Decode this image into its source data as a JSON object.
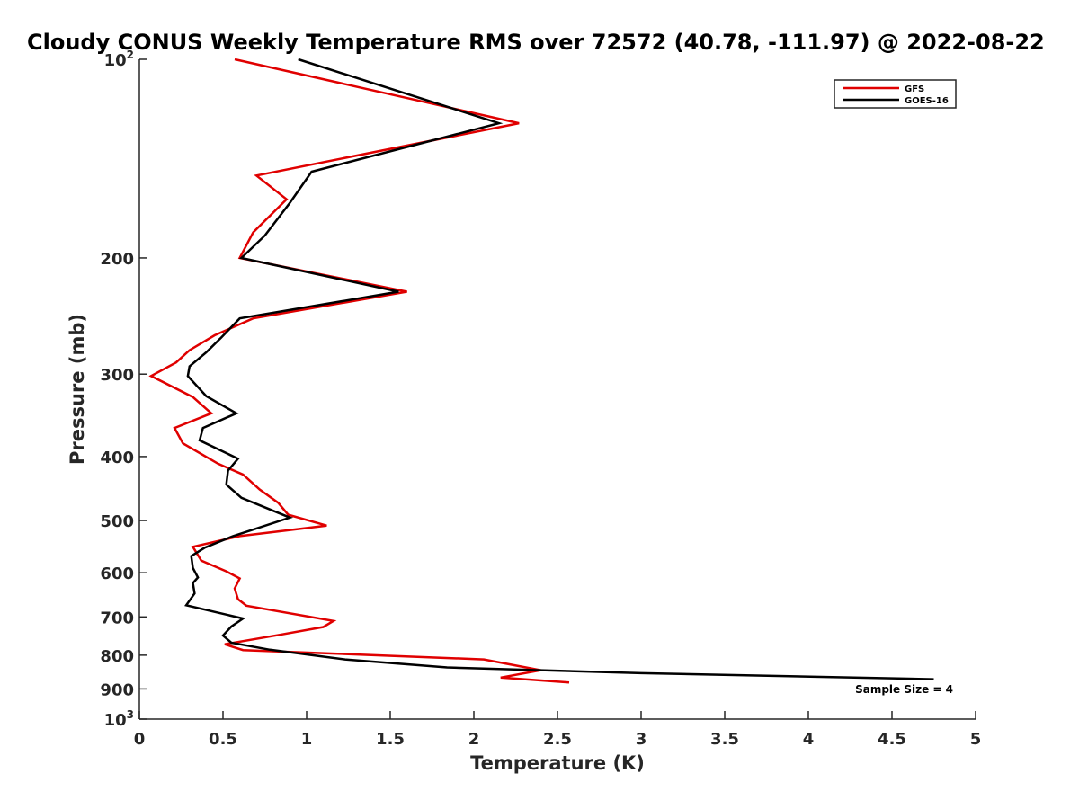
{
  "chart_data": {
    "type": "line",
    "title": "Cloudy CONUS Weekly Temperature RMS over 72572 (40.78, -111.97) @ 2022-08-22",
    "xlabel": "Temperature (K)",
    "ylabel": "Pressure (mb)",
    "xlim": [
      0,
      5
    ],
    "ylim": [
      100,
      1000
    ],
    "y_scale": "log",
    "y_reversed": true,
    "grid": false,
    "legend_position": "top-right",
    "x_ticks": [
      {
        "value": 0,
        "label": "0"
      },
      {
        "value": 0.5,
        "label": "0.5"
      },
      {
        "value": 1,
        "label": "1"
      },
      {
        "value": 1.5,
        "label": "1.5"
      },
      {
        "value": 2,
        "label": "2"
      },
      {
        "value": 2.5,
        "label": "2.5"
      },
      {
        "value": 3,
        "label": "3"
      },
      {
        "value": 3.5,
        "label": "3.5"
      },
      {
        "value": 4,
        "label": "4"
      },
      {
        "value": 4.5,
        "label": "4.5"
      },
      {
        "value": 5,
        "label": "5"
      }
    ],
    "y_ticks": [
      {
        "value": 100,
        "label": "10",
        "sup": "2"
      },
      {
        "value": 200,
        "label": "200",
        "sup": ""
      },
      {
        "value": 300,
        "label": "300",
        "sup": ""
      },
      {
        "value": 400,
        "label": "400",
        "sup": ""
      },
      {
        "value": 500,
        "label": "500",
        "sup": ""
      },
      {
        "value": 600,
        "label": "600",
        "sup": ""
      },
      {
        "value": 700,
        "label": "700",
        "sup": ""
      },
      {
        "value": 800,
        "label": "800",
        "sup": ""
      },
      {
        "value": 900,
        "label": "900",
        "sup": ""
      },
      {
        "value": 1000,
        "label": "10",
        "sup": "3"
      }
    ],
    "series": [
      {
        "name": "GFS",
        "color": "#e00000",
        "points": [
          [
            0.57,
            100
          ],
          [
            2.27,
            125
          ],
          [
            0.7,
            150
          ],
          [
            0.88,
            163
          ],
          [
            0.68,
            183
          ],
          [
            0.6,
            200
          ],
          [
            1.6,
            225
          ],
          [
            0.68,
            247
          ],
          [
            0.45,
            262
          ],
          [
            0.3,
            276
          ],
          [
            0.22,
            288
          ],
          [
            0.07,
            302
          ],
          [
            0.32,
            325
          ],
          [
            0.43,
            344
          ],
          [
            0.21,
            362
          ],
          [
            0.26,
            382
          ],
          [
            0.47,
            410
          ],
          [
            0.62,
            426
          ],
          [
            0.72,
            449
          ],
          [
            0.83,
            470
          ],
          [
            0.89,
            490
          ],
          [
            1.12,
            509
          ],
          [
            0.6,
            528
          ],
          [
            0.32,
            548
          ],
          [
            0.37,
            575
          ],
          [
            0.52,
            597
          ],
          [
            0.6,
            612
          ],
          [
            0.57,
            634
          ],
          [
            0.59,
            658
          ],
          [
            0.64,
            673
          ],
          [
            1.16,
            710
          ],
          [
            1.1,
            725
          ],
          [
            0.84,
            745
          ],
          [
            0.51,
            770
          ],
          [
            0.62,
            786
          ],
          [
            2.06,
            812
          ],
          [
            2.4,
            843
          ],
          [
            2.16,
            865
          ],
          [
            2.57,
            880
          ]
        ]
      },
      {
        "name": "GOES-16",
        "color": "#000000",
        "points": [
          [
            0.95,
            100
          ],
          [
            2.15,
            125
          ],
          [
            1.03,
            148
          ],
          [
            0.9,
            165
          ],
          [
            0.75,
            185
          ],
          [
            0.61,
            200
          ],
          [
            1.55,
            225
          ],
          [
            0.6,
            247
          ],
          [
            0.49,
            264
          ],
          [
            0.4,
            278
          ],
          [
            0.3,
            292
          ],
          [
            0.29,
            302
          ],
          [
            0.4,
            324
          ],
          [
            0.58,
            344
          ],
          [
            0.38,
            362
          ],
          [
            0.36,
            378
          ],
          [
            0.59,
            403
          ],
          [
            0.53,
            420
          ],
          [
            0.52,
            441
          ],
          [
            0.61,
            462
          ],
          [
            0.9,
            495
          ],
          [
            0.56,
            528
          ],
          [
            0.39,
            550
          ],
          [
            0.31,
            566
          ],
          [
            0.32,
            590
          ],
          [
            0.35,
            610
          ],
          [
            0.32,
            622
          ],
          [
            0.33,
            645
          ],
          [
            0.28,
            672
          ],
          [
            0.62,
            704
          ],
          [
            0.55,
            724
          ],
          [
            0.5,
            747
          ],
          [
            0.55,
            766
          ],
          [
            0.78,
            785
          ],
          [
            1.23,
            812
          ],
          [
            1.84,
            835
          ],
          [
            3.0,
            852
          ],
          [
            4.75,
            870
          ]
        ]
      }
    ],
    "annotation": "Sample Size = 4"
  }
}
